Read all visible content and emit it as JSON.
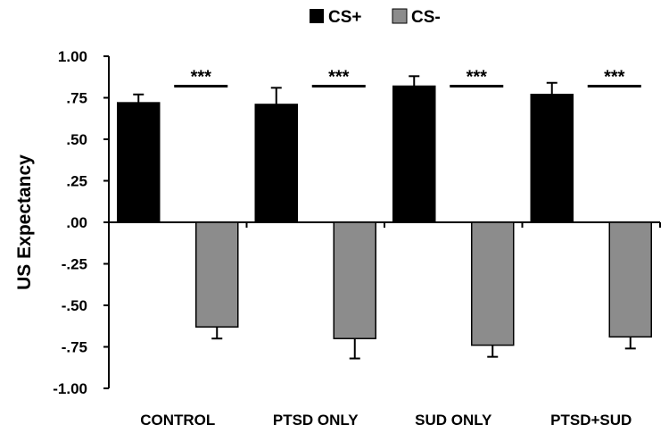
{
  "chart_data": {
    "type": "bar",
    "title": "",
    "xlabel": "",
    "ylabel": "US Expectancy",
    "ylim": [
      -1.0,
      1.0
    ],
    "yticks": [
      1.0,
      0.75,
      0.5,
      0.25,
      0.0,
      -0.25,
      -0.5,
      -0.75,
      -1.0
    ],
    "ytick_labels": [
      "1.00",
      ".75",
      ".50",
      ".25",
      ".00",
      "-.25",
      "-.50",
      "-.75",
      "-1.00"
    ],
    "categories": [
      "CONTROL",
      "PTSD ONLY",
      "SUD ONLY",
      "PTSD+SUD"
    ],
    "series": [
      {
        "name": "CS+",
        "color": "#000000",
        "values": [
          0.72,
          0.71,
          0.82,
          0.77
        ],
        "error": [
          0.05,
          0.1,
          0.06,
          0.07
        ]
      },
      {
        "name": "CS-",
        "color": "#8c8c8c",
        "values": [
          -0.63,
          -0.7,
          -0.74,
          -0.69
        ],
        "error": [
          0.07,
          0.12,
          0.07,
          0.07
        ]
      }
    ],
    "annotations": [
      "***",
      "***",
      "***",
      "***"
    ],
    "legend": "top-center",
    "grid": false
  }
}
